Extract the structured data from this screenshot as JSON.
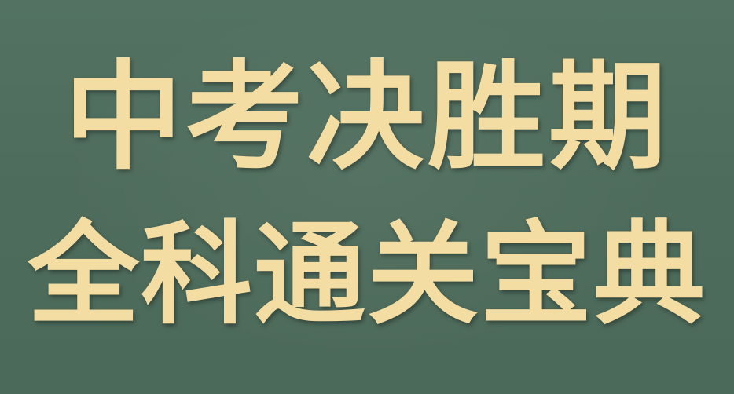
{
  "colors": {
    "background": "#4f6e5d",
    "text": "#f4dda2"
  },
  "headline": {
    "line1": "中考决胜期",
    "line2": "全科通关宝典"
  }
}
